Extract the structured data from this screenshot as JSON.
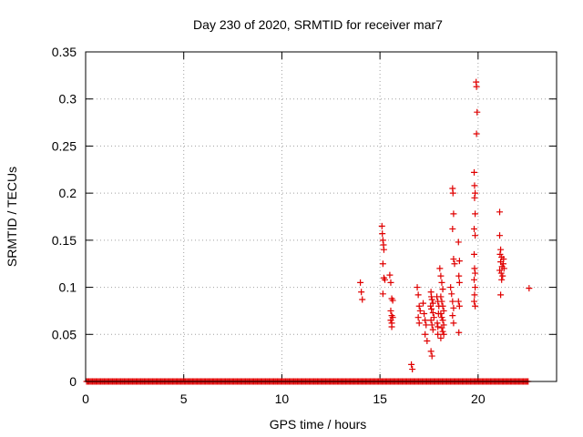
{
  "chart_data": {
    "type": "scatter",
    "title": "Day 230 of 2020, SRMTID for receiver mar7",
    "xlabel": "GPS time / hours",
    "ylabel": "SRMTID / TECUs",
    "xlim": [
      0,
      24
    ],
    "ylim": [
      0,
      0.35
    ],
    "x_ticks": [
      0,
      5,
      10,
      15,
      20
    ],
    "x_tick_labels": [
      "0",
      "5",
      "10",
      "15",
      "20"
    ],
    "y_ticks": [
      0,
      0.05,
      0.1,
      0.15,
      0.2,
      0.25,
      0.3,
      0.35
    ],
    "y_tick_labels": [
      "0",
      "0.05",
      "0.1",
      "0.15",
      "0.2",
      "0.25",
      "0.3",
      "0.35"
    ],
    "grid": true,
    "marker": "+",
    "colors": {
      "points": "#e00000",
      "axis": "#000000",
      "grid": "#a0a0a0"
    },
    "series": [
      {
        "name": "SRMTID",
        "points": [
          [
            14.0,
            0.105
          ],
          [
            14.05,
            0.095
          ],
          [
            14.1,
            0.087
          ],
          [
            15.1,
            0.165
          ],
          [
            15.12,
            0.157
          ],
          [
            15.15,
            0.15
          ],
          [
            15.18,
            0.145
          ],
          [
            15.2,
            0.14
          ],
          [
            15.15,
            0.125
          ],
          [
            15.2,
            0.11
          ],
          [
            15.25,
            0.108
          ],
          [
            15.15,
            0.093
          ],
          [
            15.5,
            0.113
          ],
          [
            15.55,
            0.105
          ],
          [
            15.6,
            0.088
          ],
          [
            15.65,
            0.086
          ],
          [
            15.55,
            0.075
          ],
          [
            15.6,
            0.07
          ],
          [
            15.65,
            0.068
          ],
          [
            15.55,
            0.065
          ],
          [
            15.6,
            0.062
          ],
          [
            15.6,
            0.058
          ],
          [
            16.6,
            0.018
          ],
          [
            16.65,
            0.013
          ],
          [
            16.9,
            0.1
          ],
          [
            16.95,
            0.092
          ],
          [
            17.0,
            0.08
          ],
          [
            17.05,
            0.075
          ],
          [
            16.95,
            0.068
          ],
          [
            17.0,
            0.062
          ],
          [
            17.2,
            0.083
          ],
          [
            17.25,
            0.072
          ],
          [
            17.3,
            0.065
          ],
          [
            17.35,
            0.06
          ],
          [
            17.3,
            0.05
          ],
          [
            17.4,
            0.043
          ],
          [
            17.6,
            0.095
          ],
          [
            17.62,
            0.09
          ],
          [
            17.65,
            0.087
          ],
          [
            17.7,
            0.083
          ],
          [
            17.58,
            0.08
          ],
          [
            17.62,
            0.077
          ],
          [
            17.7,
            0.073
          ],
          [
            17.75,
            0.068
          ],
          [
            17.6,
            0.065
          ],
          [
            17.65,
            0.06
          ],
          [
            17.7,
            0.055
          ],
          [
            17.6,
            0.032
          ],
          [
            17.65,
            0.027
          ],
          [
            17.9,
            0.09
          ],
          [
            17.95,
            0.085
          ],
          [
            18.0,
            0.08
          ],
          [
            17.98,
            0.072
          ],
          [
            17.92,
            0.062
          ],
          [
            17.95,
            0.058
          ],
          [
            17.95,
            0.05
          ],
          [
            18.05,
            0.12
          ],
          [
            18.1,
            0.112
          ],
          [
            18.15,
            0.105
          ],
          [
            18.2,
            0.098
          ],
          [
            18.1,
            0.09
          ],
          [
            18.15,
            0.085
          ],
          [
            18.2,
            0.08
          ],
          [
            18.25,
            0.075
          ],
          [
            18.1,
            0.072
          ],
          [
            18.15,
            0.068
          ],
          [
            18.2,
            0.065
          ],
          [
            18.25,
            0.06
          ],
          [
            18.15,
            0.057
          ],
          [
            18.2,
            0.053
          ],
          [
            18.25,
            0.05
          ],
          [
            18.1,
            0.046
          ],
          [
            18.6,
            0.1
          ],
          [
            18.65,
            0.093
          ],
          [
            18.7,
            0.085
          ],
          [
            18.75,
            0.078
          ],
          [
            18.7,
            0.07
          ],
          [
            18.75,
            0.062
          ],
          [
            18.7,
            0.205
          ],
          [
            18.72,
            0.2
          ],
          [
            18.75,
            0.178
          ],
          [
            18.7,
            0.162
          ],
          [
            18.75,
            0.13
          ],
          [
            18.8,
            0.125
          ],
          [
            19.0,
            0.148
          ],
          [
            19.05,
            0.128
          ],
          [
            19.02,
            0.112
          ],
          [
            19.05,
            0.105
          ],
          [
            19.0,
            0.085
          ],
          [
            19.05,
            0.08
          ],
          [
            19.02,
            0.052
          ],
          [
            19.8,
            0.222
          ],
          [
            19.82,
            0.208
          ],
          [
            19.85,
            0.2
          ],
          [
            19.82,
            0.195
          ],
          [
            19.85,
            0.178
          ],
          [
            19.8,
            0.162
          ],
          [
            19.85,
            0.155
          ],
          [
            19.8,
            0.135
          ],
          [
            19.82,
            0.12
          ],
          [
            19.85,
            0.115
          ],
          [
            19.8,
            0.108
          ],
          [
            19.85,
            0.1
          ],
          [
            19.82,
            0.092
          ],
          [
            19.8,
            0.085
          ],
          [
            19.85,
            0.08
          ],
          [
            19.9,
            0.318
          ],
          [
            19.92,
            0.313
          ],
          [
            19.95,
            0.286
          ],
          [
            19.92,
            0.263
          ],
          [
            21.1,
            0.18
          ],
          [
            21.1,
            0.155
          ],
          [
            21.15,
            0.14
          ],
          [
            21.12,
            0.135
          ],
          [
            21.2,
            0.132
          ],
          [
            21.15,
            0.127
          ],
          [
            21.22,
            0.122
          ],
          [
            21.1,
            0.118
          ],
          [
            21.18,
            0.115
          ],
          [
            21.25,
            0.112
          ],
          [
            21.2,
            0.108
          ],
          [
            21.3,
            0.13
          ],
          [
            21.28,
            0.125
          ],
          [
            21.32,
            0.12
          ],
          [
            21.15,
            0.092
          ],
          [
            22.6,
            0.099
          ]
        ]
      }
    ]
  }
}
